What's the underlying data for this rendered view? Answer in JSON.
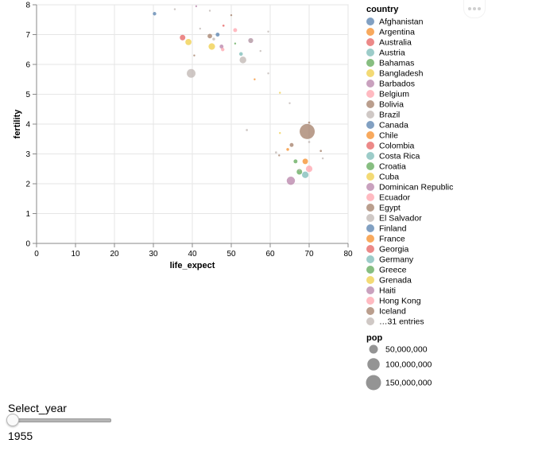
{
  "chart_data": {
    "type": "scatter",
    "xlabel": "life_expect",
    "ylabel": "fertility",
    "xlim": [
      0,
      80
    ],
    "ylim": [
      0,
      8
    ],
    "x_ticks": [
      "0",
      "10",
      "20",
      "30",
      "40",
      "50",
      "60",
      "70",
      "80"
    ],
    "y_ticks": [
      "0",
      "1",
      "2",
      "3",
      "4",
      "5",
      "6",
      "7",
      "8"
    ],
    "legend_title": "country",
    "legend_entries": [
      {
        "label": "Afghanistan",
        "color": "#4c78a8"
      },
      {
        "label": "Argentina",
        "color": "#f58518"
      },
      {
        "label": "Australia",
        "color": "#e45756"
      },
      {
        "label": "Austria",
        "color": "#72b7b2"
      },
      {
        "label": "Bahamas",
        "color": "#54a24b"
      },
      {
        "label": "Bangladesh",
        "color": "#eeca3b"
      },
      {
        "label": "Barbados",
        "color": "#b279a2"
      },
      {
        "label": "Belgium",
        "color": "#ff9da6"
      },
      {
        "label": "Bolivia",
        "color": "#9d755d"
      },
      {
        "label": "Brazil",
        "color": "#bab0ac"
      },
      {
        "label": "Canada",
        "color": "#4c78a8"
      },
      {
        "label": "Chile",
        "color": "#f58518"
      },
      {
        "label": "Colombia",
        "color": "#e45756"
      },
      {
        "label": "Costa Rica",
        "color": "#72b7b2"
      },
      {
        "label": "Croatia",
        "color": "#54a24b"
      },
      {
        "label": "Cuba",
        "color": "#eeca3b"
      },
      {
        "label": "Dominican Republic",
        "color": "#b279a2"
      },
      {
        "label": "Ecuador",
        "color": "#ff9da6"
      },
      {
        "label": "Egypt",
        "color": "#9d755d"
      },
      {
        "label": "El Salvador",
        "color": "#bab0ac"
      },
      {
        "label": "Finland",
        "color": "#4c78a8"
      },
      {
        "label": "France",
        "color": "#f58518"
      },
      {
        "label": "Georgia",
        "color": "#e45756"
      },
      {
        "label": "Germany",
        "color": "#72b7b2"
      },
      {
        "label": "Greece",
        "color": "#54a24b"
      },
      {
        "label": "Grenada",
        "color": "#eeca3b"
      },
      {
        "label": "Haiti",
        "color": "#b279a2"
      },
      {
        "label": "Hong Kong",
        "color": "#ff9da6"
      },
      {
        "label": "Iceland",
        "color": "#9d755d"
      },
      {
        "label": "…31 entries",
        "color": "#bab0ac"
      }
    ],
    "size_legend_title": "pop",
    "size_legend_entries": [
      {
        "label": "50,000,000",
        "value": 50000000
      },
      {
        "label": "100,000,000",
        "value": 100000000
      },
      {
        "label": "150,000,000",
        "value": 150000000
      }
    ],
    "points": [
      {
        "x": 30.3,
        "y": 7.7,
        "pop": 8000000,
        "color": "#4c78a8"
      },
      {
        "x": 35.5,
        "y": 7.85,
        "pop": 500000,
        "color": "#bab0ac"
      },
      {
        "x": 41.0,
        "y": 7.95,
        "pop": 300000,
        "color": "#b279a2"
      },
      {
        "x": 44.5,
        "y": 7.8,
        "pop": 1200000,
        "color": "#bab0ac"
      },
      {
        "x": 48.0,
        "y": 7.3,
        "pop": 3000000,
        "color": "#e45756"
      },
      {
        "x": 50.0,
        "y": 7.65,
        "pop": 1500000,
        "color": "#9d755d"
      },
      {
        "x": 51.0,
        "y": 7.15,
        "pop": 10000000,
        "color": "#ff9da6"
      },
      {
        "x": 42.0,
        "y": 7.2,
        "pop": 1500000,
        "color": "#bab0ac"
      },
      {
        "x": 37.5,
        "y": 6.9,
        "pop": 20000000,
        "color": "#e45756"
      },
      {
        "x": 39.0,
        "y": 6.75,
        "pop": 25000000,
        "color": "#eeca3b"
      },
      {
        "x": 44.5,
        "y": 6.95,
        "pop": 14000000,
        "color": "#9d755d"
      },
      {
        "x": 46.5,
        "y": 7.0,
        "pop": 10000000,
        "color": "#4c78a8"
      },
      {
        "x": 45.5,
        "y": 6.85,
        "pop": 5000000,
        "color": "#bab0ac"
      },
      {
        "x": 45.0,
        "y": 6.6,
        "pop": 28000000,
        "color": "#eeca3b"
      },
      {
        "x": 47.5,
        "y": 6.6,
        "pop": 10000000,
        "color": "#b279a2"
      },
      {
        "x": 47.8,
        "y": 6.5,
        "pop": 8000000,
        "color": "#ff9da6"
      },
      {
        "x": 51.0,
        "y": 6.7,
        "pop": 2000000,
        "color": "#54a24b"
      },
      {
        "x": 55.0,
        "y": 6.8,
        "pop": 16000000,
        "color": "#b279a2"
      },
      {
        "x": 55.0,
        "y": 6.8,
        "pop": 12000000,
        "color": "#bab0ac"
      },
      {
        "x": 59.5,
        "y": 7.1,
        "pop": 300000,
        "color": "#bab0ac"
      },
      {
        "x": 52.5,
        "y": 6.35,
        "pop": 9000000,
        "color": "#72b7b2"
      },
      {
        "x": 53.0,
        "y": 6.15,
        "pop": 30000000,
        "color": "#bab0ac"
      },
      {
        "x": 57.5,
        "y": 6.45,
        "pop": 1500000,
        "color": "#bab0ac"
      },
      {
        "x": 40.5,
        "y": 6.3,
        "pop": 1500000,
        "color": "#9d755d"
      },
      {
        "x": 39.7,
        "y": 5.7,
        "pop": 50000000,
        "color": "#bab0ac"
      },
      {
        "x": 59.5,
        "y": 5.7,
        "pop": 300000,
        "color": "#bab0ac"
      },
      {
        "x": 56.0,
        "y": 5.5,
        "pop": 2000000,
        "color": "#f58518"
      },
      {
        "x": 62.5,
        "y": 5.05,
        "pop": 300000,
        "color": "#eeca3b"
      },
      {
        "x": 65.0,
        "y": 4.7,
        "pop": 300000,
        "color": "#bab0ac"
      },
      {
        "x": 54.0,
        "y": 3.8,
        "pop": 3000000,
        "color": "#bab0ac"
      },
      {
        "x": 62.5,
        "y": 3.7,
        "pop": 1500000,
        "color": "#eeca3b"
      },
      {
        "x": 69.5,
        "y": 3.75,
        "pop": 150000000,
        "color": "#9d755d"
      },
      {
        "x": 70.0,
        "y": 4.05,
        "pop": 3000000,
        "color": "#9d755d"
      },
      {
        "x": 70.0,
        "y": 3.4,
        "pop": 3000000,
        "color": "#bab0ac"
      },
      {
        "x": 65.5,
        "y": 3.3,
        "pop": 10000000,
        "color": "#9d755d"
      },
      {
        "x": 64.5,
        "y": 3.15,
        "pop": 5000000,
        "color": "#f58518"
      },
      {
        "x": 61.5,
        "y": 3.05,
        "pop": 3000000,
        "color": "#bab0ac"
      },
      {
        "x": 62.3,
        "y": 2.95,
        "pop": 1500000,
        "color": "#9d755d"
      },
      {
        "x": 73.0,
        "y": 3.1,
        "pop": 3000000,
        "color": "#9d755d"
      },
      {
        "x": 73.5,
        "y": 2.85,
        "pop": 1500000,
        "color": "#bab0ac"
      },
      {
        "x": 66.5,
        "y": 2.75,
        "pop": 10000000,
        "color": "#54a24b"
      },
      {
        "x": 69.0,
        "y": 2.75,
        "pop": 20000000,
        "color": "#f58518"
      },
      {
        "x": 67.5,
        "y": 2.45,
        "pop": 2000000,
        "color": "#bab0ac"
      },
      {
        "x": 70.0,
        "y": 2.5,
        "pop": 28000000,
        "color": "#ff9da6"
      },
      {
        "x": 67.5,
        "y": 2.4,
        "pop": 20000000,
        "color": "#54a24b"
      },
      {
        "x": 69.0,
        "y": 2.3,
        "pop": 28000000,
        "color": "#72b7b2"
      },
      {
        "x": 65.3,
        "y": 2.1,
        "pop": 45000000,
        "color": "#b279a2"
      }
    ]
  },
  "slider": {
    "label": "Select_year",
    "value": "1955",
    "min": 1955,
    "max": 2005,
    "fraction": 0.0
  }
}
